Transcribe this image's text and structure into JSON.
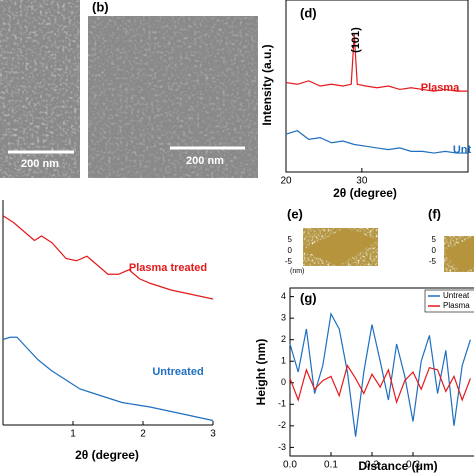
{
  "images": {
    "a": {
      "scale": "200 nm"
    },
    "b": {
      "label": "(b)",
      "scale": "200 nm"
    },
    "e": {
      "label": "(e)",
      "ticks": [
        "5",
        "0",
        "-5"
      ],
      "unit": "(nm)"
    },
    "f": {
      "label": "(f)",
      "ticks": [
        "5",
        "0",
        "-5"
      ]
    }
  },
  "chart_data": [
    {
      "type": "line",
      "panel_label": "(d)",
      "annotation": "(101)",
      "xlabel": "2θ (degree)",
      "ylabel": "Intensity (a.u.)",
      "xlim": [
        20,
        44
      ],
      "ylim": [
        0,
        100
      ],
      "xticks": [
        20,
        30
      ],
      "box": true,
      "series": [
        {
          "name": "Plasma",
          "color": "#e31a1c",
          "x": [
            20,
            21.5,
            23,
            24.5,
            26,
            27.5,
            28.6,
            29,
            29.4,
            30.5,
            32,
            33.5,
            35,
            36.5,
            38,
            39.5,
            41,
            42.5,
            44
          ],
          "values": [
            52,
            51,
            53,
            50,
            51,
            50,
            51,
            80,
            51,
            50,
            49,
            50,
            48,
            49,
            48,
            47,
            48,
            47,
            47
          ]
        },
        {
          "name": "Unt",
          "color": "#1f6fc0",
          "x": [
            20,
            21.5,
            23,
            24.5,
            26,
            27.5,
            29,
            30.5,
            32,
            33.5,
            35,
            36.5,
            38,
            39.5,
            41,
            42.5,
            44
          ],
          "values": [
            22,
            24,
            19,
            20,
            17,
            18,
            16,
            15,
            14,
            13,
            14,
            12,
            12,
            11,
            12,
            11,
            11
          ]
        }
      ]
    },
    {
      "type": "line",
      "xlabel": "2θ (degree)",
      "xlim": [
        0,
        3
      ],
      "ylim": [
        0,
        100
      ],
      "xticks": [
        1,
        2,
        3
      ],
      "box": false,
      "series": [
        {
          "name": "Plasma treated",
          "color": "#e31a1c",
          "x": [
            0,
            0.15,
            0.3,
            0.45,
            0.55,
            0.7,
            0.9,
            1.05,
            1.2,
            1.35,
            1.5,
            1.65,
            1.8,
            1.95,
            2.1,
            2.4,
            2.7,
            3
          ],
          "values": [
            93,
            90,
            86,
            82,
            84,
            81,
            74,
            73,
            75,
            71,
            67,
            67,
            69,
            65,
            63,
            60,
            58,
            56
          ]
        },
        {
          "name": "Untreated",
          "color": "#1f6fc0",
          "x": [
            0,
            0.1,
            0.2,
            0.35,
            0.5,
            0.7,
            0.9,
            1.1,
            1.3,
            1.5,
            1.7,
            1.9,
            2.1,
            2.4,
            2.7,
            3
          ],
          "values": [
            38,
            39,
            39,
            34,
            29,
            24,
            20,
            16,
            14,
            12,
            10,
            9,
            8,
            6,
            4,
            2
          ]
        }
      ]
    },
    {
      "type": "line",
      "panel_label": "(g)",
      "xlabel": "Distance (μm)",
      "ylabel": "Height (nm)",
      "xlim": [
        0,
        0.45
      ],
      "ylim": [
        -3.4,
        4.4
      ],
      "xticks": [
        {
          "value": 0,
          "label": "0.0"
        },
        0.1,
        0.2,
        0.3
      ],
      "yticks": [
        -3,
        -2,
        -1,
        0,
        1,
        2,
        3,
        4
      ],
      "box": true,
      "legend": "top-right",
      "series": [
        {
          "name": "Untreat",
          "color": "#1f6fc0",
          "x": [
            0,
            0.02,
            0.04,
            0.06,
            0.08,
            0.1,
            0.12,
            0.14,
            0.16,
            0.18,
            0.2,
            0.22,
            0.24,
            0.26,
            0.28,
            0.3,
            0.32,
            0.34,
            0.36,
            0.38,
            0.4,
            0.42,
            0.44
          ],
          "values": [
            1.8,
            0.5,
            2.5,
            -0.5,
            0.8,
            3.2,
            2.5,
            0.5,
            -2.5,
            0.5,
            2.7,
            1,
            -0.8,
            1.8,
            0.3,
            -1.8,
            1,
            2.2,
            -0.5,
            1.5,
            -2,
            0.8,
            2
          ]
        },
        {
          "name": "Plasma",
          "color": "#e31a1c",
          "x": [
            0,
            0.02,
            0.04,
            0.06,
            0.08,
            0.1,
            0.12,
            0.14,
            0.16,
            0.18,
            0.2,
            0.22,
            0.24,
            0.26,
            0.28,
            0.3,
            0.32,
            0.34,
            0.36,
            0.38,
            0.4,
            0.42,
            0.44
          ],
          "values": [
            0.2,
            -0.8,
            0.6,
            -0.3,
            0.1,
            0.3,
            -0.6,
            0.8,
            0.2,
            -0.5,
            0.4,
            -0.2,
            0.6,
            -0.9,
            0.1,
            0.5,
            -0.3,
            0.7,
            0.6,
            -0.4,
            0.3,
            -0.8,
            0.2
          ]
        }
      ]
    }
  ]
}
